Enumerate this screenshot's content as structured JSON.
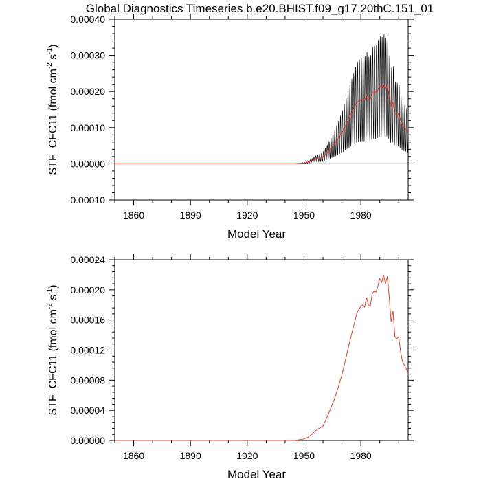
{
  "title": "Global Diagnostics Timeseries b.e20.BHIST.f09_g17.20thC.151_01",
  "chart_data": [
    {
      "type": "line",
      "panel": "top",
      "xlabel": "Model Year",
      "ylabel": {
        "base": "STF_CFC11 (fmol cm",
        "exp1": "-2",
        "mid": " s",
        "exp2": "-1",
        "end": ")"
      },
      "xlim": [
        1850,
        2005
      ],
      "ylim": [
        -0.0001,
        0.0004
      ],
      "xticks": [
        1860,
        1890,
        1920,
        1950,
        1980
      ],
      "xtick_labels": [
        "1860",
        "1890",
        "1920",
        "1950",
        "1980"
      ],
      "yticks": [
        -0.0001,
        0.0,
        0.0001,
        0.0002,
        0.0003,
        0.0004
      ],
      "ytick_labels": [
        "-0.00010",
        "0.00000",
        "0.00010",
        "0.00020",
        "0.00030",
        "0.00040"
      ],
      "zero_line": true,
      "series": [
        {
          "name": "monthly",
          "color": "#000000",
          "note": "monthly values oscillate seasonally around the annual mean; amplitude grows with the mean",
          "envelope_amplitude_fraction": 0.65
        },
        {
          "name": "annual",
          "color": "#e8392b",
          "x": [
            1850,
            1945,
            1950,
            1952,
            1954,
            1956,
            1958,
            1960,
            1962,
            1964,
            1966,
            1968,
            1970,
            1972,
            1974,
            1976,
            1978,
            1980,
            1981,
            1982,
            1983,
            1984,
            1985,
            1986,
            1987,
            1988,
            1989,
            1990,
            1991,
            1992,
            1993,
            1994,
            1995,
            1996,
            1997,
            1998,
            1999,
            2000,
            2001,
            2002,
            2003,
            2004,
            2005
          ],
          "y": [
            0.0,
            0.0,
            2e-06,
            4e-06,
            8e-06,
            1.3e-05,
            1.6e-05,
            1.9e-05,
            3e-05,
            4.2e-05,
            5.5e-05,
            7e-05,
            8.7e-05,
            0.000108,
            0.00013,
            0.00015,
            0.00017,
            0.000178,
            0.00018,
            0.000177,
            0.00019,
            0.00018,
            0.000178,
            0.000195,
            0.000198,
            0.000197,
            0.000205,
            0.000215,
            0.00021,
            0.00022,
            0.000208,
            0.000218,
            0.00019,
            0.000158,
            0.000172,
            0.000138,
            0.000135,
            0.000138,
            0.000118,
            0.000105,
            0.0001,
            9.5e-05,
            8.9e-05
          ]
        }
      ]
    },
    {
      "type": "line",
      "panel": "bottom",
      "xlabel": "Model Year",
      "ylabel": {
        "base": "STF_CFC11 (fmol cm",
        "exp1": "-2",
        "mid": " s",
        "exp2": "-1",
        "end": ")"
      },
      "xlim": [
        1850,
        2005
      ],
      "ylim": [
        0.0,
        0.00024
      ],
      "xticks": [
        1860,
        1890,
        1920,
        1950,
        1980
      ],
      "xtick_labels": [
        "1860",
        "1890",
        "1920",
        "1950",
        "1980"
      ],
      "yticks": [
        0.0,
        4e-05,
        8e-05,
        0.00012,
        0.00016,
        0.0002,
        0.00024
      ],
      "ytick_labels": [
        "0.00000",
        "0.00004",
        "0.00008",
        "0.00012",
        "0.00016",
        "0.00020",
        "0.00024"
      ],
      "series": [
        {
          "name": "annual",
          "color": "#e8392b",
          "x": [
            1850,
            1945,
            1950,
            1952,
            1954,
            1956,
            1958,
            1960,
            1962,
            1964,
            1966,
            1968,
            1970,
            1972,
            1974,
            1976,
            1978,
            1980,
            1981,
            1982,
            1983,
            1984,
            1985,
            1986,
            1987,
            1988,
            1989,
            1990,
            1991,
            1992,
            1993,
            1994,
            1995,
            1996,
            1997,
            1998,
            1999,
            2000,
            2001,
            2002,
            2003,
            2004,
            2005
          ],
          "y": [
            0.0,
            0.0,
            2e-06,
            4e-06,
            8e-06,
            1.3e-05,
            1.6e-05,
            1.9e-05,
            3e-05,
            4.2e-05,
            5.5e-05,
            7e-05,
            8.7e-05,
            0.000108,
            0.00013,
            0.00015,
            0.00017,
            0.000178,
            0.00018,
            0.000177,
            0.00019,
            0.00018,
            0.000178,
            0.000195,
            0.000198,
            0.000197,
            0.000205,
            0.000215,
            0.00021,
            0.00022,
            0.000208,
            0.000218,
            0.00019,
            0.000158,
            0.000172,
            0.000138,
            0.000135,
            0.000138,
            0.000118,
            0.000105,
            0.0001,
            9.5e-05,
            8.9e-05
          ]
        }
      ]
    }
  ]
}
